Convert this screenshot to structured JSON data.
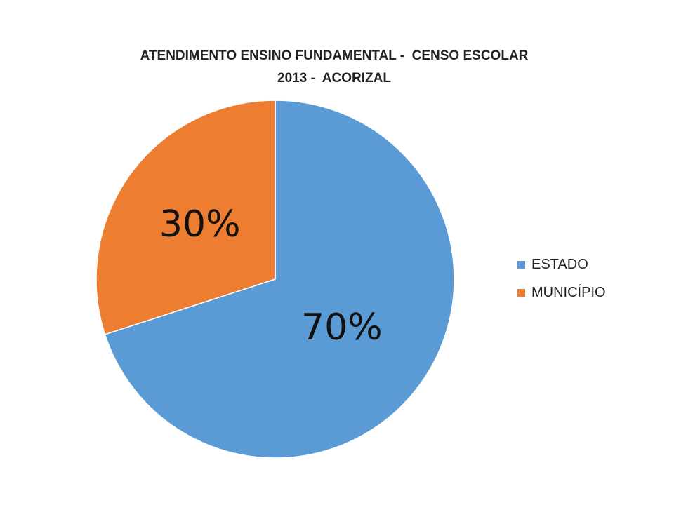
{
  "chart_data": {
    "type": "pie",
    "title": "ATENDIMENTO ENSINO FUNDAMENTAL -  CENSO ESCOLAR\n2013 -  ACORIZAL",
    "categories": [
      "ESTADO",
      "MUNICÍPIO"
    ],
    "values": [
      70,
      30
    ],
    "labels": [
      "70%",
      "30%"
    ],
    "colors": [
      "#5b9bd5",
      "#ed7d31"
    ],
    "legend_position": "right"
  }
}
